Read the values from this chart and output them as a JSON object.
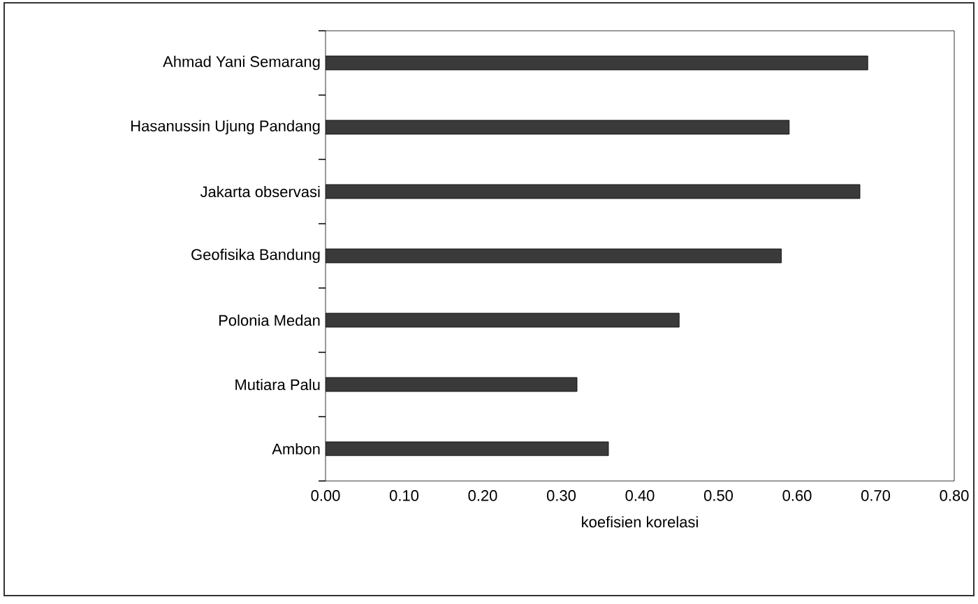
{
  "chart_data": {
    "type": "bar",
    "orientation": "horizontal",
    "xlabel": "koefisien korelasi",
    "categories": [
      "Ahmad Yani Semarang",
      "Hasanussin Ujung Pandang",
      "Jakarta observasi",
      "Geofisika Bandung",
      "Polonia Medan",
      "Mutiara Palu",
      "Ambon"
    ],
    "values": [
      0.69,
      0.59,
      0.68,
      0.58,
      0.45,
      0.32,
      0.36
    ],
    "color": "#3a3a3a",
    "xlim": [
      0,
      0.8
    ],
    "xticks": [
      {
        "value": 0,
        "label": "0.00"
      },
      {
        "value": 0.1,
        "label": "0.10"
      },
      {
        "value": 0.2,
        "label": "0.20"
      },
      {
        "value": 0.3,
        "label": "0.30"
      },
      {
        "value": 0.4,
        "label": "0.40"
      },
      {
        "value": 0.5,
        "label": "0.50"
      },
      {
        "value": 0.6,
        "label": "0.60"
      },
      {
        "value": 0.7,
        "label": "0.70"
      },
      {
        "value": 0.8,
        "label": "0.80"
      }
    ],
    "grid": false
  }
}
